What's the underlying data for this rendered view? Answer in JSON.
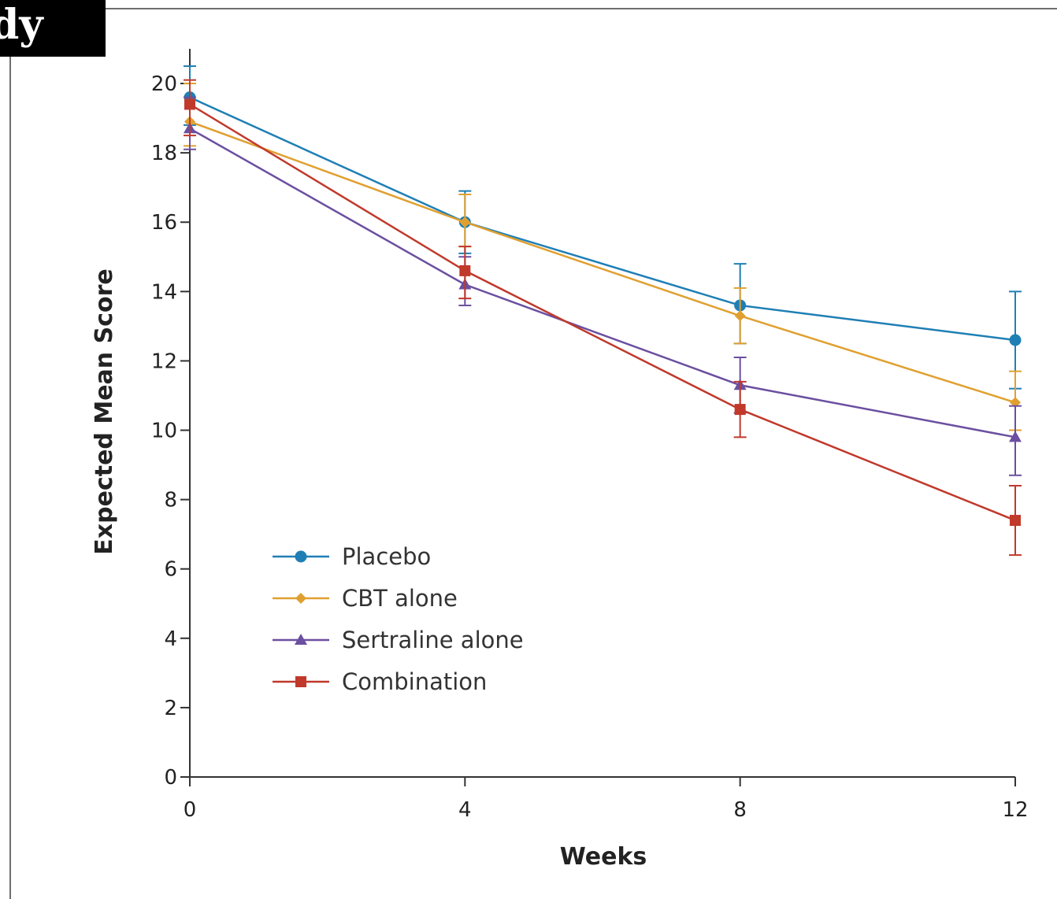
{
  "corner_label": "dy",
  "chart_data": {
    "type": "line",
    "title": "",
    "xlabel": "Weeks",
    "ylabel": "Expected Mean Score",
    "x": [
      0,
      4,
      8,
      12
    ],
    "xlim": [
      0,
      12
    ],
    "ylim": [
      0,
      21
    ],
    "xticks": [
      0,
      4,
      8,
      12
    ],
    "yticks": [
      0,
      2,
      4,
      6,
      8,
      10,
      12,
      14,
      16,
      18,
      20
    ],
    "grid": false,
    "legend_position": "bottom-left",
    "series": [
      {
        "name": "Placebo",
        "color": "#1f7fb5",
        "marker": "circle",
        "values": [
          19.6,
          16.0,
          13.6,
          12.6
        ],
        "error_low": [
          18.8,
          15.1,
          12.5,
          11.2
        ],
        "error_high": [
          20.5,
          16.9,
          14.8,
          14.0
        ]
      },
      {
        "name": "CBT alone",
        "color": "#e0a030",
        "marker": "diamond",
        "values": [
          18.9,
          16.0,
          13.3,
          10.8
        ],
        "error_low": [
          18.2,
          15.3,
          12.5,
          10.0
        ],
        "error_high": [
          20.0,
          16.8,
          14.1,
          11.7
        ]
      },
      {
        "name": "Sertraline alone",
        "color": "#6b4fa0",
        "marker": "triangle",
        "values": [
          18.7,
          14.2,
          11.3,
          9.8
        ],
        "error_low": [
          18.1,
          13.6,
          10.5,
          8.7
        ],
        "error_high": [
          19.6,
          15.0,
          12.1,
          10.7
        ]
      },
      {
        "name": "Combination",
        "color": "#c0392b",
        "marker": "square",
        "values": [
          19.4,
          14.6,
          10.6,
          7.4
        ],
        "error_low": [
          18.5,
          13.8,
          9.8,
          6.4
        ],
        "error_high": [
          20.1,
          15.3,
          11.4,
          8.4
        ]
      }
    ]
  }
}
